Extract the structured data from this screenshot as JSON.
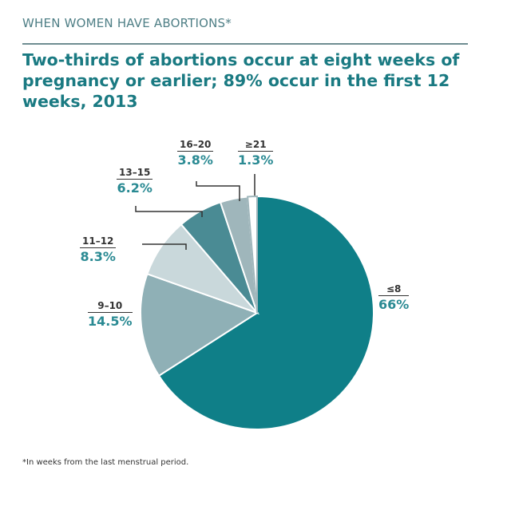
{
  "header": {
    "kicker": "WHEN WOMEN HAVE ABORTIONS*",
    "title": "Two-thirds of abortions occur at eight weeks of pregnancy or earlier; 89% occur in the first 12 weeks, 2013"
  },
  "footnote": "*In weeks from the last menstrual period.",
  "chart_data": {
    "type": "pie",
    "title": "Two-thirds of abortions occur at eight weeks of pregnancy or earlier; 89% occur in the first 12 weeks, 2013",
    "categories": [
      "≤8",
      "9–10",
      "11–12",
      "13–15",
      "16–20",
      "≥21"
    ],
    "values": [
      66,
      14.5,
      8.3,
      6.2,
      3.8,
      1.3
    ],
    "labels": [
      "66%",
      "14.5%",
      "8.3%",
      "6.2%",
      "3.8%",
      "1.3%"
    ],
    "colors": [
      "#0f7f88",
      "#8fb0b6",
      "#c9d8db",
      "#4a8b94",
      "#9fb6bb",
      "#ffffff"
    ],
    "start": "12 o'clock, clockwise"
  }
}
